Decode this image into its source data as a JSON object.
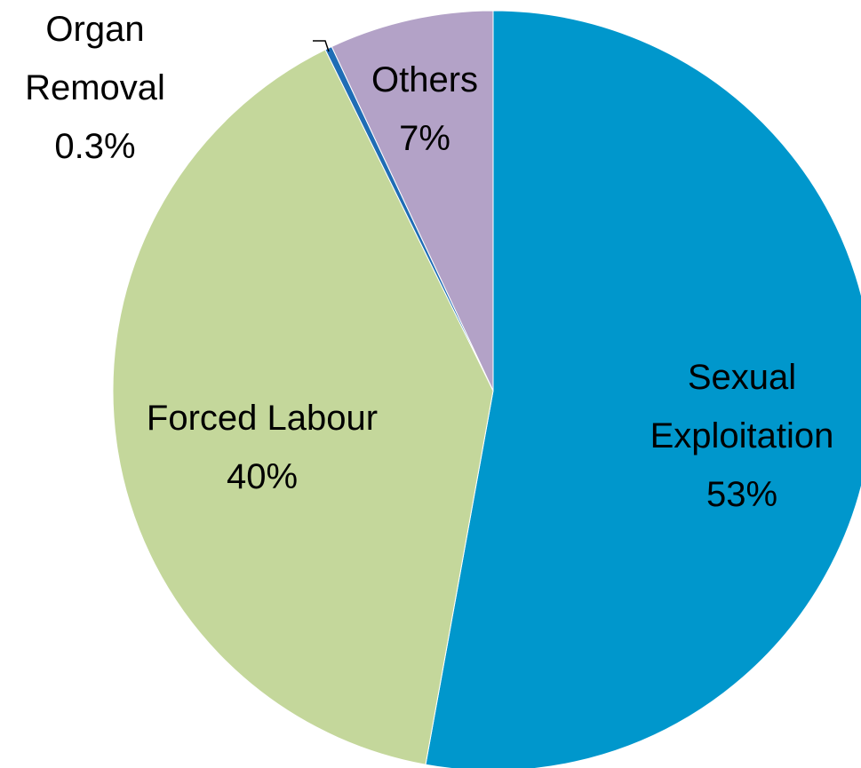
{
  "chart_data": {
    "type": "pie",
    "categories": [
      "Sexual Exploitation",
      "Forced Labour",
      "Organ Removal",
      "Others"
    ],
    "values": [
      53,
      40,
      0.3,
      7
    ],
    "value_labels": [
      "53%",
      "40%",
      "0.3%",
      "7%"
    ],
    "colors": [
      "#0097cc",
      "#c4d79b",
      "#1f6db5",
      "#b3a2c7"
    ]
  }
}
